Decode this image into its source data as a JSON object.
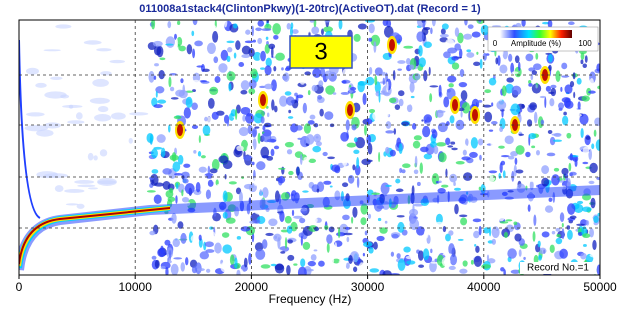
{
  "chart_data": {
    "type": "image",
    "title": "011008a1stack4(ClintonPkwy)(1-20trc)(ActiveOT).dat (Record = 1)",
    "x_label": "Frequency (Hz)",
    "xlim": [
      0,
      50000
    ],
    "xticks": [
      0,
      10000,
      20000,
      30000,
      40000,
      50000
    ],
    "grid": true,
    "badge": "3",
    "colorbar": {
      "min_label": "0",
      "label": "Amplitude (%)",
      "max_label": "100"
    },
    "record_label": "Record No.=1"
  }
}
